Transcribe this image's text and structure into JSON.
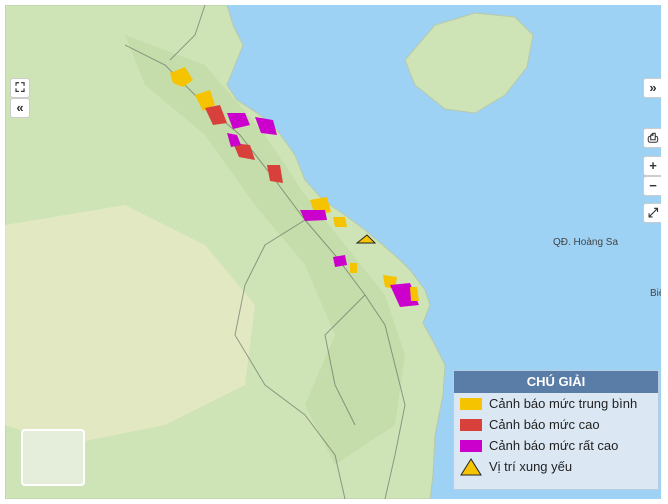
{
  "legend": {
    "title": "CHÚ GIẢI",
    "items": [
      {
        "label": "Cảnh báo mức trung bình",
        "color": "#f6c300"
      },
      {
        "label": "Cảnh báo mức cao",
        "color": "#d8413b"
      },
      {
        "label": "Cảnh báo mức rất cao",
        "color": "#cc00cc"
      },
      {
        "label": "Vị trí xung yếu"
      }
    ]
  },
  "map": {
    "labels": [
      "QĐ. Hoàng Sa",
      "Biể"
    ]
  }
}
